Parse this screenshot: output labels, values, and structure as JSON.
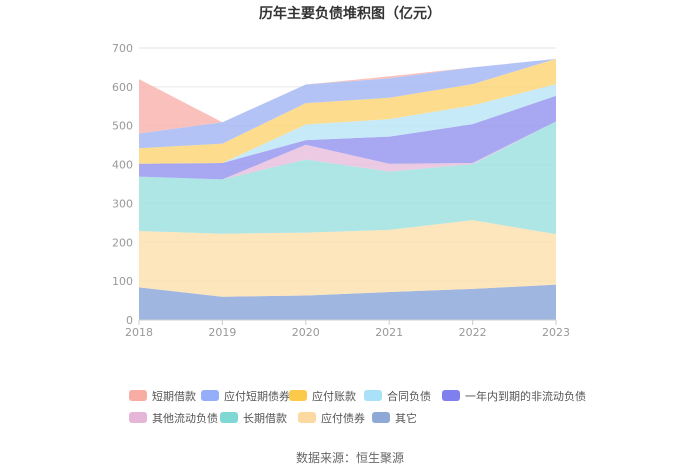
{
  "chart_data": {
    "type": "area",
    "stacked": true,
    "title": "历年主要负债堆积图（亿元）",
    "categories": [
      "2018",
      "2019",
      "2020",
      "2021",
      "2022",
      "2023"
    ],
    "ylim": [
      0,
      700
    ],
    "yticks": [
      0,
      100,
      200,
      300,
      400,
      500,
      600,
      700
    ],
    "series": [
      {
        "name": "其它",
        "color": "#8eaadb",
        "values": [
          84,
          60,
          63,
          72,
          80,
          91
        ]
      },
      {
        "name": "应付债券",
        "color": "#fde0b0",
        "values": [
          145,
          162,
          162,
          160,
          177,
          130
        ]
      },
      {
        "name": "长期借款",
        "color": "#9fe2e0",
        "values": [
          140,
          140,
          188,
          150,
          144,
          290
        ]
      },
      {
        "name": "其他流动负债",
        "color": "#e9c1df",
        "values": [
          0,
          0,
          38,
          20,
          3,
          0
        ]
      },
      {
        "name": "一年内到期的非流动负债",
        "color": "#9999f0",
        "values": [
          33,
          42,
          12,
          70,
          100,
          66
        ]
      },
      {
        "name": "合同负债",
        "color": "#bde6f7",
        "values": [
          0,
          0,
          40,
          45,
          48,
          30
        ]
      },
      {
        "name": "应付账款",
        "color": "#fdd67a",
        "values": [
          40,
          50,
          55,
          55,
          55,
          65
        ]
      },
      {
        "name": "应付短期债券",
        "color": "#a6b9f5",
        "values": [
          38,
          55,
          48,
          50,
          43,
          0
        ]
      },
      {
        "name": "短期借款",
        "color": "#f9b6b0",
        "values": [
          140,
          0,
          0,
          5,
          0,
          0
        ]
      }
    ],
    "legend": [
      {
        "name": "短期借款",
        "color": "#f9aca4"
      },
      {
        "name": "应付短期债券",
        "color": "#94aefa"
      },
      {
        "name": "应付账款",
        "color": "#fdc94a"
      },
      {
        "name": "合同负债",
        "color": "#a9e1f8"
      },
      {
        "name": "一年内到期的非流动负债",
        "color": "#7f7fee"
      },
      {
        "name": "其他流动负债",
        "color": "#e6b6d9"
      },
      {
        "name": "长期借款",
        "color": "#80d8d5"
      },
      {
        "name": "应付债券",
        "color": "#fcd9a0"
      },
      {
        "name": "其它",
        "color": "#8ea9d6"
      }
    ],
    "legend_position": "bottom"
  },
  "source": "数据来源：恒生聚源"
}
